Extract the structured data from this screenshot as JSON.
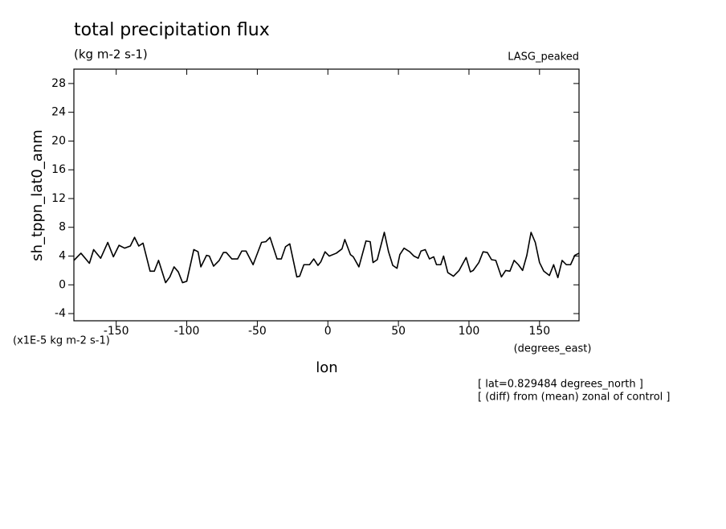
{
  "chart_data": {
    "type": "line",
    "title": "total precipitation flux",
    "subtitle": "(kg m-2 s-1)",
    "dataset": "LASG_peaked",
    "x_label": "lon",
    "x_units": "(degrees_east)",
    "y_label": "sh_tppn_lat0_anm",
    "y_units": "(x1E-5 kg m-2 s-1)",
    "notes": [
      "[ lat=0.829484 degrees_north ]",
      "[ (diff) from (mean) zonal of control ]"
    ],
    "xlim": [
      -180,
      178
    ],
    "ylim": [
      -5,
      30
    ],
    "xticks": [
      -150,
      -100,
      -50,
      0,
      50,
      100,
      150
    ],
    "yticks": [
      -4,
      0,
      4,
      8,
      12,
      16,
      20,
      24,
      28
    ],
    "grid": false,
    "series": [
      {
        "name": "sh_tppn_lat0_anm",
        "color": "#000000",
        "x": [
          -180,
          -175,
          -169,
          -166,
          -161,
          -156,
          -152,
          -148,
          -144,
          -140,
          -137,
          -134,
          -131,
          -126,
          -123,
          -120,
          -115,
          -112,
          -109,
          -106,
          -103,
          -100,
          -95,
          -92,
          -90,
          -86,
          -84,
          -81,
          -77,
          -74,
          -72,
          -68,
          -64,
          -61,
          -58,
          -53,
          -47,
          -44,
          -41,
          -36,
          -33,
          -30,
          -27,
          -22,
          -20,
          -17,
          -13,
          -10,
          -7,
          -5,
          -2,
          1,
          6,
          10,
          12,
          16,
          18,
          22,
          27,
          30,
          32,
          35,
          40,
          43,
          46,
          49,
          51,
          54,
          58,
          61,
          64,
          66,
          69,
          72,
          75,
          77,
          80,
          82,
          85,
          89,
          93,
          98,
          101,
          103,
          107,
          110,
          113,
          116,
          119,
          123,
          126,
          129,
          132,
          135,
          138,
          141,
          144,
          147,
          150,
          153,
          157,
          160,
          163,
          166,
          169,
          172,
          175,
          178
        ],
        "values": [
          3.4,
          4.4,
          3.0,
          4.9,
          3.7,
          5.9,
          3.9,
          5.5,
          5.1,
          5.4,
          6.6,
          5.4,
          5.8,
          1.9,
          1.9,
          3.4,
          0.3,
          1.1,
          2.5,
          1.8,
          0.3,
          0.5,
          4.9,
          4.6,
          2.5,
          4.1,
          4.0,
          2.6,
          3.4,
          4.5,
          4.5,
          3.6,
          3.6,
          4.7,
          4.7,
          2.8,
          5.9,
          6.0,
          6.6,
          3.6,
          3.6,
          5.3,
          5.7,
          1.1,
          1.2,
          2.8,
          2.8,
          3.6,
          2.7,
          3.2,
          4.6,
          4.0,
          4.4,
          5.0,
          6.3,
          4.2,
          3.9,
          2.5,
          6.1,
          6.0,
          3.1,
          3.5,
          7.3,
          4.6,
          2.7,
          2.3,
          4.2,
          5.1,
          4.6,
          4.0,
          3.7,
          4.7,
          4.9,
          3.6,
          3.9,
          2.8,
          2.8,
          4.0,
          1.7,
          1.2,
          2.0,
          3.8,
          1.8,
          2.0,
          3.1,
          4.6,
          4.5,
          3.5,
          3.4,
          1.1,
          2.0,
          1.9,
          3.4,
          2.8,
          2.0,
          4.1,
          7.3,
          5.9,
          3.1,
          1.9,
          1.3,
          2.8,
          1.0,
          3.4,
          2.8,
          2.8,
          4.1,
          4.4
        ]
      }
    ]
  }
}
